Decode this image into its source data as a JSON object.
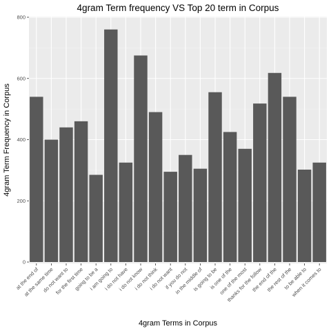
{
  "chart_data": {
    "type": "bar",
    "title": "4gram Term frequency VS Top 20 term in Corpus",
    "xlabel": "4gram Terms in Corpus",
    "ylabel": "4gram Term Frequency in Corpus",
    "ylim": [
      0,
      800
    ],
    "yticks": [
      0,
      200,
      400,
      600,
      800
    ],
    "grid": true,
    "bar_color": "#595959",
    "panel_color": "#ebebeb",
    "categories": [
      "at the end of",
      "at the same time",
      "do not want to",
      "for the first time",
      "going to be a",
      "i am going to",
      "i do not have",
      "i do not know",
      "i do not think",
      "i do not want",
      "if you do not",
      "in the middle of",
      "is going to be",
      "is one of the",
      "one of the most",
      "thanks for the follow",
      "the end of the",
      "the rest of the",
      "to be able to",
      "when it comes to"
    ],
    "values": [
      540,
      400,
      440,
      460,
      285,
      760,
      325,
      675,
      490,
      295,
      350,
      305,
      555,
      425,
      370,
      518,
      618,
      540,
      302,
      325
    ]
  }
}
